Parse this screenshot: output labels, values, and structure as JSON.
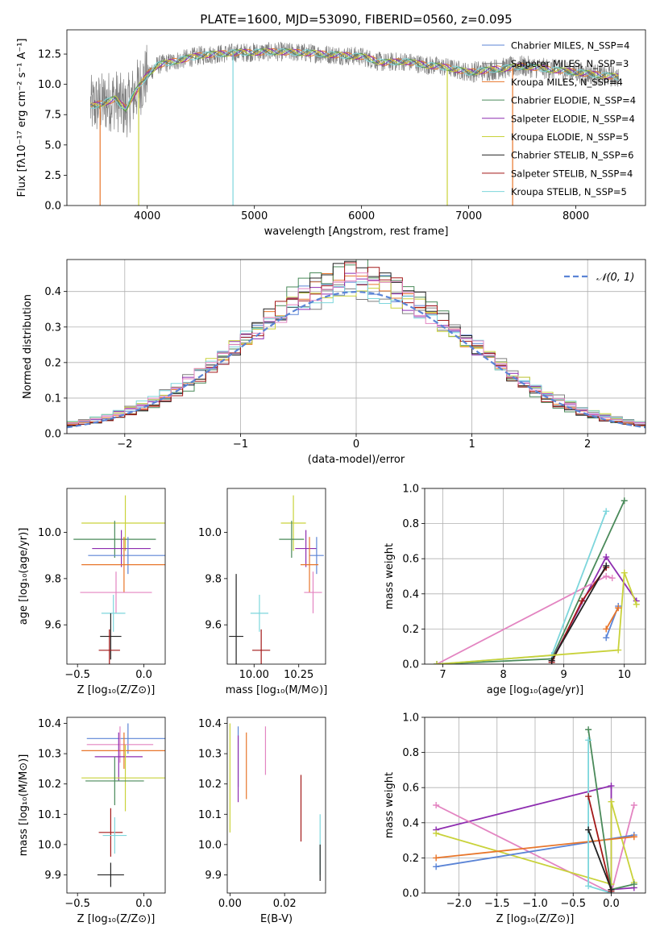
{
  "chart_data": [
    {
      "id": "spectrum",
      "type": "line",
      "title": "PLATE=1600, MJD=53090, FIBERID=0560, z=0.095",
      "xlabel": "wavelength [Angstrom, rest frame]",
      "ylabel": "Flux [fλ10⁻¹⁷ erg cm⁻² s⁻¹ A⁻¹]",
      "xlim": [
        3250,
        8650
      ],
      "ylim": [
        0,
        14.5
      ],
      "xticks": [
        4000,
        5000,
        6000,
        7000,
        8000
      ],
      "yticks": [
        0.0,
        2.5,
        5.0,
        7.5,
        10.0,
        12.5
      ],
      "grid": false,
      "legend_position": "top-right",
      "data_range": [
        3470,
        8400
      ],
      "legend": [
        {
          "name": "Chabrier MILES, N_SSP=4",
          "color": "#5b84d6"
        },
        {
          "name": "Salpeter MILES, N_SSP=3",
          "color": "#7f7f7f"
        },
        {
          "name": "Kroupa MILES, N_SSP=4",
          "color": "#e8762b"
        },
        {
          "name": "Chabrier ELODIE, N_SSP=4",
          "color": "#4a8a5a"
        },
        {
          "name": "Salpeter ELODIE, N_SSP=4",
          "color": "#8e2db0"
        },
        {
          "name": "Kroupa ELODIE, N_SSP=5",
          "color": "#c9d23a"
        },
        {
          "name": "Chabrier STELIB, N_SSP=6",
          "color": "#222222"
        },
        {
          "name": "Salpeter STELIB, N_SSP=4",
          "color": "#a31818"
        },
        {
          "name": "Kroupa STELIB, N_SSP=5",
          "color": "#7dd6dc"
        }
      ],
      "observed_color": "#808080",
      "model_lines": [
        "#e8762b",
        "#8e2db0",
        "#c9d23a",
        "#4a8a5a",
        "#7dd6dc"
      ],
      "continuum": [
        [
          3480,
          8.2
        ],
        [
          3600,
          8.5
        ],
        [
          3700,
          8.8
        ],
        [
          3800,
          8.0
        ],
        [
          3900,
          9.5
        ],
        [
          4000,
          10.8
        ],
        [
          4100,
          11.6
        ],
        [
          4300,
          12.0
        ],
        [
          4500,
          12.4
        ],
        [
          4800,
          12.6
        ],
        [
          5200,
          12.7
        ],
        [
          5500,
          12.6
        ],
        [
          5800,
          12.4
        ],
        [
          6000,
          12.3
        ],
        [
          6200,
          11.8
        ],
        [
          6400,
          11.9
        ],
        [
          6600,
          11.6
        ],
        [
          6800,
          11.4
        ],
        [
          7000,
          11.0
        ],
        [
          7200,
          11.2
        ],
        [
          7500,
          11.5
        ],
        [
          7800,
          11.2
        ],
        [
          8100,
          10.9
        ],
        [
          8400,
          10.6
        ]
      ],
      "dips": [
        {
          "x": 3920,
          "y": 0,
          "color": "#c9d23a"
        },
        {
          "x": 4800,
          "y": 0,
          "color": "#7dd6dc"
        },
        {
          "x": 6800,
          "y": 0,
          "color": "#c9d23a"
        },
        {
          "x": 7410,
          "y": 0,
          "color": "#e8762b"
        },
        {
          "x": 3560,
          "y": 0,
          "color": "#e8762b"
        }
      ]
    },
    {
      "id": "residuals",
      "type": "bar",
      "xlabel": "(data-model)/error",
      "ylabel": "Normed distribution",
      "xlim": [
        -2.5,
        2.5
      ],
      "ylim": [
        0,
        0.49
      ],
      "xticks": [
        -2,
        -1,
        0,
        1,
        2
      ],
      "yticks": [
        0.0,
        0.1,
        0.2,
        0.3,
        0.4
      ],
      "grid": true,
      "legend_position": "top-right",
      "legend": [
        {
          "name": "𝒩(0, 1)",
          "color": "#5b84d6",
          "dashed": true
        }
      ],
      "bin_width": 0.1,
      "bin_start": -2.5,
      "series_colors": [
        "#5b84d6",
        "#7f7f7f",
        "#e8762b",
        "#4a8a5a",
        "#8e2db0",
        "#c9d23a",
        "#222222",
        "#a31818",
        "#7dd6dc",
        "#e384c1"
      ]
    },
    {
      "id": "age-vs-z",
      "type": "scatter",
      "xlabel": "Z [log₁₀(Z/Z⊙)]",
      "ylabel": "age  [log₁₀(age/yr)]",
      "xlim": [
        -0.58,
        0.16
      ],
      "ylim": [
        9.43,
        10.19
      ],
      "xticks": [
        -0.5,
        0.0
      ],
      "yticks": [
        9.6,
        9.8,
        10.0
      ],
      "grid": false,
      "points": [
        {
          "x": -0.14,
          "y": 10.04,
          "xerr": 0.33,
          "yerr": 0.12,
          "color": "#c9d23a"
        },
        {
          "x": -0.22,
          "y": 9.97,
          "xerr": 0.31,
          "yerr": 0.08,
          "color": "#4a8a5a"
        },
        {
          "x": -0.17,
          "y": 9.93,
          "xerr": 0.22,
          "yerr": 0.08,
          "color": "#8e2db0"
        },
        {
          "x": -0.12,
          "y": 9.9,
          "xerr": 0.3,
          "yerr": 0.08,
          "color": "#5b84d6"
        },
        {
          "x": -0.15,
          "y": 9.86,
          "xerr": 0.32,
          "yerr": 0.12,
          "color": "#e8762b"
        },
        {
          "x": -0.21,
          "y": 9.74,
          "xerr": 0.27,
          "yerr": 0.09,
          "color": "#e384c1"
        },
        {
          "x": -0.23,
          "y": 9.65,
          "xerr": 0.09,
          "yerr": 0.08,
          "color": "#7dd6dc"
        },
        {
          "x": -0.25,
          "y": 9.55,
          "xerr": 0.08,
          "yerr": 0.1,
          "color": "#222222"
        },
        {
          "x": -0.26,
          "y": 9.49,
          "xerr": 0.08,
          "yerr": 0.09,
          "color": "#a31818"
        }
      ]
    },
    {
      "id": "age-vs-mass",
      "type": "scatter",
      "xlabel": "mass [log₁₀(M/M⊙)]",
      "ylabel": "",
      "xlim": [
        9.85,
        10.4
      ],
      "ylim": [
        9.43,
        10.19
      ],
      "xticks": [
        10.0,
        10.25
      ],
      "yticks": [
        9.6,
        9.8,
        10.0
      ],
      "grid": false,
      "points": [
        {
          "x": 10.22,
          "y": 10.04,
          "xerr": 0.07,
          "yerr": 0.12,
          "color": "#c9d23a"
        },
        {
          "x": 10.21,
          "y": 9.97,
          "xerr": 0.07,
          "yerr": 0.08,
          "color": "#4a8a5a"
        },
        {
          "x": 10.29,
          "y": 9.93,
          "xerr": 0.06,
          "yerr": 0.08,
          "color": "#8e2db0"
        },
        {
          "x": 10.35,
          "y": 9.9,
          "xerr": 0.04,
          "yerr": 0.08,
          "color": "#5b84d6"
        },
        {
          "x": 10.31,
          "y": 9.86,
          "xerr": 0.05,
          "yerr": 0.12,
          "color": "#e8762b"
        },
        {
          "x": 10.33,
          "y": 9.74,
          "xerr": 0.05,
          "yerr": 0.09,
          "color": "#e384c1"
        },
        {
          "x": 10.03,
          "y": 9.65,
          "xerr": 0.05,
          "yerr": 0.08,
          "color": "#7dd6dc"
        },
        {
          "x": 9.9,
          "y": 9.55,
          "xerr": 0.04,
          "yerr": 0.27,
          "color": "#222222"
        },
        {
          "x": 10.04,
          "y": 9.49,
          "xerr": 0.05,
          "yerr": 0.09,
          "color": "#a31818"
        }
      ]
    },
    {
      "id": "weight-vs-age",
      "type": "line",
      "xlabel": "age  [log₁₀(age/yr)]",
      "ylabel": "mass weight",
      "xlim": [
        6.7,
        10.35
      ],
      "ylim": [
        0,
        1.0
      ],
      "xticks": [
        7,
        8,
        9,
        10
      ],
      "yticks": [
        0.0,
        0.2,
        0.4,
        0.6,
        0.8,
        1.0
      ],
      "grid": true,
      "series": [
        {
          "color": "#4a8a5a",
          "points": [
            [
              6.9,
              0.0
            ],
            [
              8.8,
              0.03
            ],
            [
              10.0,
              0.93
            ]
          ]
        },
        {
          "color": "#8e2db0",
          "points": [
            [
              8.8,
              0.02
            ],
            [
              9.7,
              0.61
            ],
            [
              10.2,
              0.36
            ]
          ]
        },
        {
          "color": "#e384c1",
          "points": [
            [
              6.9,
              0.0
            ],
            [
              9.7,
              0.5
            ],
            [
              9.8,
              0.49
            ]
          ]
        },
        {
          "color": "#7dd6dc",
          "points": [
            [
              6.9,
              0.0
            ],
            [
              8.8,
              0.05
            ],
            [
              9.7,
              0.87
            ]
          ]
        },
        {
          "color": "#a31818",
          "points": [
            [
              8.8,
              0.01
            ],
            [
              9.3,
              0.36
            ],
            [
              9.7,
              0.55
            ]
          ]
        },
        {
          "color": "#222222",
          "points": [
            [
              8.8,
              0.02
            ],
            [
              9.7,
              0.56
            ]
          ]
        },
        {
          "color": "#c9d23a",
          "points": [
            [
              6.9,
              0.0
            ],
            [
              9.9,
              0.08
            ],
            [
              10.0,
              0.52
            ],
            [
              10.2,
              0.34
            ]
          ]
        },
        {
          "color": "#5b84d6",
          "points": [
            [
              9.7,
              0.15
            ],
            [
              9.9,
              0.33
            ]
          ]
        },
        {
          "color": "#e8762b",
          "points": [
            [
              9.7,
              0.2
            ],
            [
              9.9,
              0.32
            ]
          ]
        }
      ]
    },
    {
      "id": "mass-vs-z",
      "type": "scatter",
      "xlabel": "Z [log₁₀(Z/Z⊙)]",
      "ylabel": "mass [log₁₀(M/M⊙)]",
      "xlim": [
        -0.58,
        0.16
      ],
      "ylim": [
        9.84,
        10.42
      ],
      "xticks": [
        -0.5,
        0.0
      ],
      "yticks": [
        9.9,
        10.0,
        10.1,
        10.2,
        10.3,
        10.4
      ],
      "grid": false,
      "points": [
        {
          "x": -0.12,
          "y": 10.35,
          "xerr": 0.31,
          "yerr": 0.05,
          "color": "#5b84d6"
        },
        {
          "x": -0.18,
          "y": 10.33,
          "xerr": 0.25,
          "yerr": 0.06,
          "color": "#e384c1"
        },
        {
          "x": -0.15,
          "y": 10.31,
          "xerr": 0.32,
          "yerr": 0.06,
          "color": "#e8762b"
        },
        {
          "x": -0.19,
          "y": 10.29,
          "xerr": 0.18,
          "yerr": 0.08,
          "color": "#8e2db0"
        },
        {
          "x": -0.14,
          "y": 10.22,
          "xerr": 0.33,
          "yerr": 0.11,
          "color": "#c9d23a"
        },
        {
          "x": -0.22,
          "y": 10.21,
          "xerr": 0.22,
          "yerr": 0.08,
          "color": "#4a8a5a"
        },
        {
          "x": -0.25,
          "y": 10.04,
          "xerr": 0.09,
          "yerr": 0.08,
          "color": "#a31818"
        },
        {
          "x": -0.22,
          "y": 10.03,
          "xerr": 0.09,
          "yerr": 0.06,
          "color": "#7dd6dc"
        },
        {
          "x": -0.25,
          "y": 9.9,
          "xerr": 0.1,
          "yerr": 0.04,
          "color": "#222222"
        }
      ]
    },
    {
      "id": "mass-vs-ebv",
      "type": "scatter",
      "xlabel": "E(B-V)",
      "ylabel": "",
      "xlim": [
        -0.001,
        0.035
      ],
      "ylim": [
        9.84,
        10.42
      ],
      "xticks": [
        0.0,
        0.02
      ],
      "yticks": [
        9.9,
        10.0,
        10.1,
        10.2,
        10.3,
        10.4
      ],
      "grid": false,
      "points": [
        {
          "x": 0.0,
          "y": 10.22,
          "xerr": 0.0,
          "yerr": 0.18,
          "color": "#c9d23a"
        },
        {
          "x": 0.003,
          "y": 10.29,
          "xerr": 0.0,
          "yerr": 0.1,
          "color": "#5b84d6"
        },
        {
          "x": 0.003,
          "y": 10.25,
          "xerr": 0.0,
          "yerr": 0.11,
          "color": "#8e2db0"
        },
        {
          "x": 0.006,
          "y": 10.26,
          "xerr": 0.0,
          "yerr": 0.11,
          "color": "#e8762b"
        },
        {
          "x": 0.013,
          "y": 10.31,
          "xerr": 0.0,
          "yerr": 0.08,
          "color": "#e384c1"
        },
        {
          "x": 0.026,
          "y": 10.12,
          "xerr": 0.0,
          "yerr": 0.11,
          "color": "#a31818"
        },
        {
          "x": 0.033,
          "y": 10.0,
          "xerr": 0.0,
          "yerr": 0.1,
          "color": "#7dd6dc"
        },
        {
          "x": 0.033,
          "y": 9.94,
          "xerr": 0.0,
          "yerr": 0.06,
          "color": "#222222"
        }
      ]
    },
    {
      "id": "weight-vs-z",
      "type": "line",
      "xlabel": "Z [log₁₀(Z/Z⊙)]",
      "ylabel": "mass weight",
      "xlim": [
        -2.45,
        0.45
      ],
      "ylim": [
        0,
        1.0
      ],
      "xticks": [
        -2.0,
        -1.5,
        -1.0,
        -0.5,
        0.0
      ],
      "yticks": [
        0.0,
        0.2,
        0.4,
        0.6,
        0.8,
        1.0
      ],
      "grid": true,
      "series": [
        {
          "color": "#8e2db0",
          "points": [
            [
              -2.3,
              0.36
            ],
            [
              0.0,
              0.61
            ],
            [
              0.0,
              0.02
            ],
            [
              0.3,
              0.03
            ]
          ]
        },
        {
          "color": "#e384c1",
          "points": [
            [
              -2.3,
              0.5
            ],
            [
              0.0,
              0.0
            ],
            [
              0.3,
              0.5
            ]
          ]
        },
        {
          "color": "#c9d23a",
          "points": [
            [
              -2.3,
              0.34
            ],
            [
              0.0,
              0.05
            ],
            [
              0.0,
              0.52
            ],
            [
              0.3,
              0.06
            ]
          ]
        },
        {
          "color": "#5b84d6",
          "points": [
            [
              -2.3,
              0.15
            ],
            [
              0.3,
              0.33
            ]
          ]
        },
        {
          "color": "#e8762b",
          "points": [
            [
              -2.3,
              0.2
            ],
            [
              0.3,
              0.32
            ]
          ]
        },
        {
          "color": "#4a8a5a",
          "points": [
            [
              -0.3,
              0.93
            ],
            [
              0.0,
              0.02
            ],
            [
              0.3,
              0.05
            ]
          ]
        },
        {
          "color": "#7dd6dc",
          "points": [
            [
              -0.3,
              0.87
            ],
            [
              -0.3,
              0.04
            ],
            [
              0.0,
              0.0
            ]
          ]
        },
        {
          "color": "#a31818",
          "points": [
            [
              -0.3,
              0.55
            ],
            [
              0.0,
              0.01
            ]
          ]
        },
        {
          "color": "#222222",
          "points": [
            [
              -0.3,
              0.36
            ],
            [
              0.0,
              0.02
            ]
          ]
        }
      ]
    }
  ]
}
